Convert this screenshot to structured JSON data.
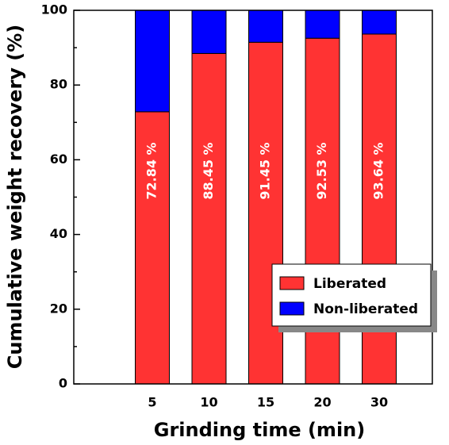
{
  "chart_data": {
    "type": "stacked_bar",
    "categories": [
      "5",
      "10",
      "15",
      "20",
      "30"
    ],
    "series": [
      {
        "name": "Liberated",
        "color": "#ff3333",
        "values": [
          72.84,
          88.45,
          91.45,
          92.53,
          93.64
        ],
        "value_labels": [
          "72.84 %",
          "88.45 %",
          "91.45 %",
          "92.53 %",
          "93.64 %"
        ]
      },
      {
        "name": "Non-liberated",
        "color": "#0000ff",
        "values": [
          27.16,
          11.55,
          8.55,
          7.47,
          6.36
        ]
      }
    ],
    "xlabel": "Grinding time (min)",
    "ylabel": "Cumulative weight recovery (%)",
    "ylim": [
      0,
      100
    ],
    "yticks": [
      0,
      20,
      40,
      60,
      80,
      100
    ],
    "yticks_minor": [
      10,
      30,
      50,
      70,
      90
    ],
    "legend": "lower right"
  }
}
